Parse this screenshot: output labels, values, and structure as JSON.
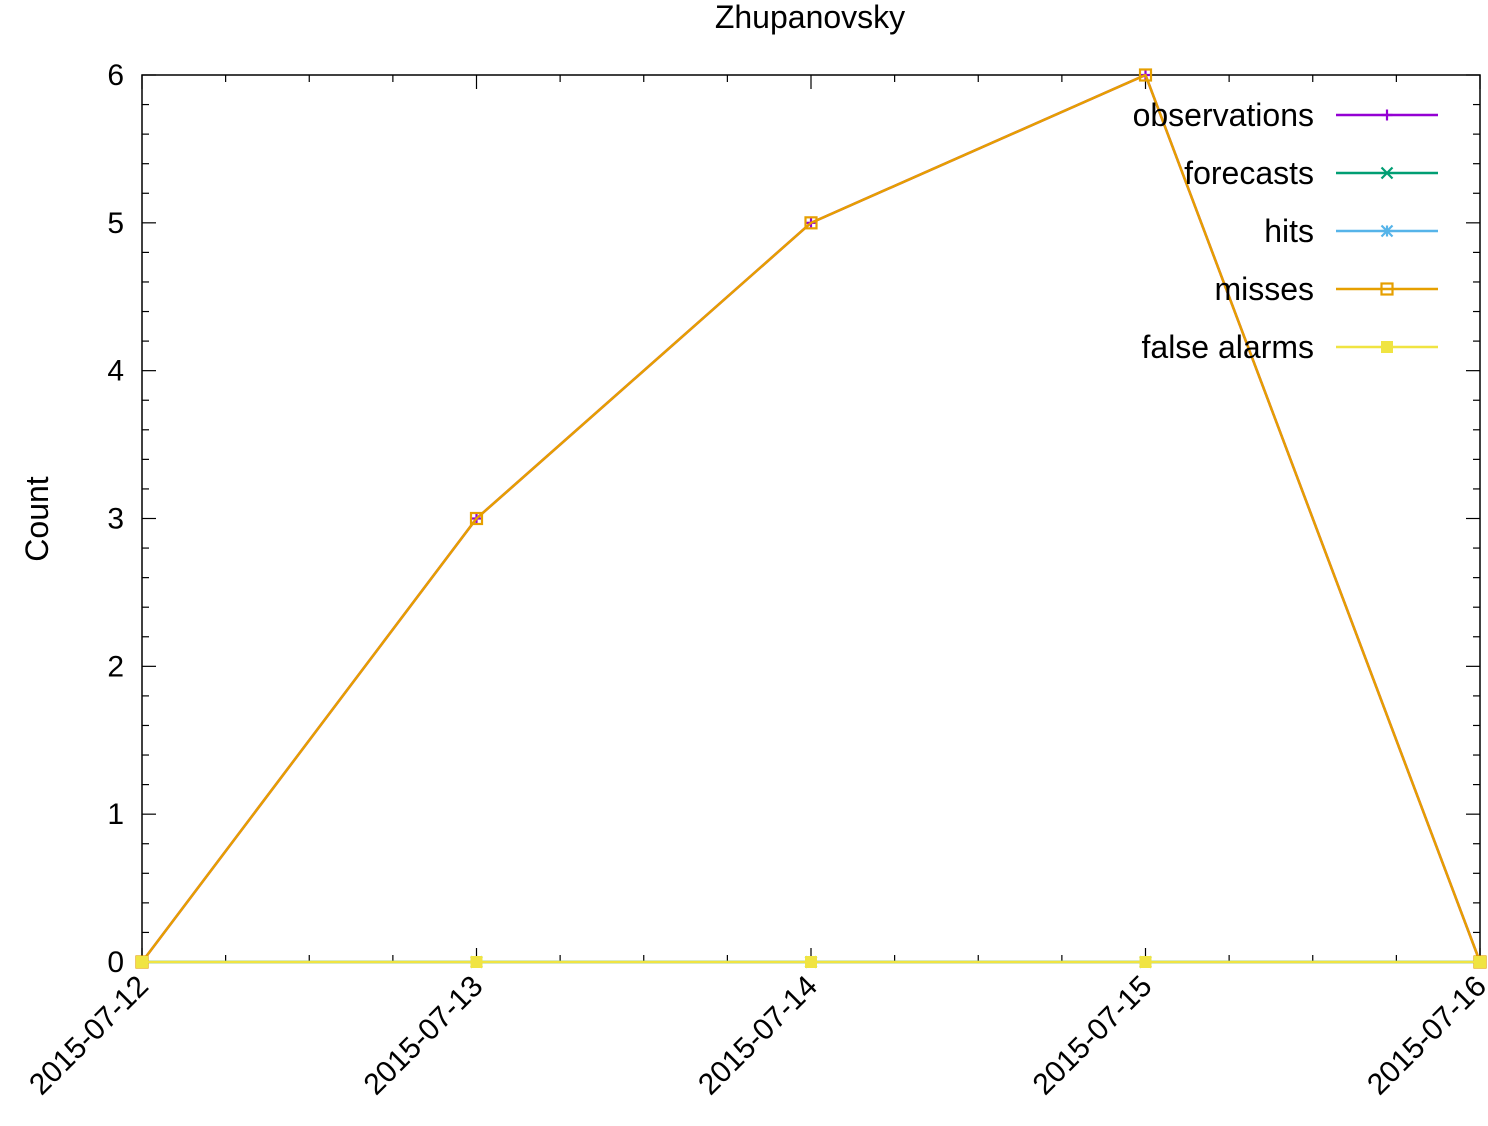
{
  "chart_data": {
    "type": "line",
    "title": "Zhupanovsky",
    "xlabel": "",
    "ylabel": "Count",
    "x": [
      "2015-07-12",
      "2015-07-13",
      "2015-07-14",
      "2015-07-15",
      "2015-07-16"
    ],
    "ylim": [
      0,
      6
    ],
    "y_ticks": [
      "0",
      "1",
      "2",
      "3",
      "4",
      "5",
      "6"
    ],
    "grid": false,
    "legend_position": "top-right",
    "series": [
      {
        "name": "observations",
        "color": "#9400d3",
        "marker": "plus",
        "values": [
          0,
          3,
          5,
          6,
          0
        ]
      },
      {
        "name": "forecasts",
        "color": "#009e73",
        "marker": "cross",
        "values": [
          0,
          0,
          0,
          0,
          0
        ]
      },
      {
        "name": "hits",
        "color": "#56b4e9",
        "marker": "star",
        "values": [
          0,
          0,
          0,
          0,
          0
        ]
      },
      {
        "name": "misses",
        "color": "#e69f00",
        "marker": "square-open",
        "values": [
          0,
          3,
          5,
          6,
          0
        ]
      },
      {
        "name": "false alarms",
        "color": "#f0e442",
        "marker": "square-filled",
        "values": [
          0,
          0,
          0,
          0,
          0
        ]
      }
    ]
  }
}
